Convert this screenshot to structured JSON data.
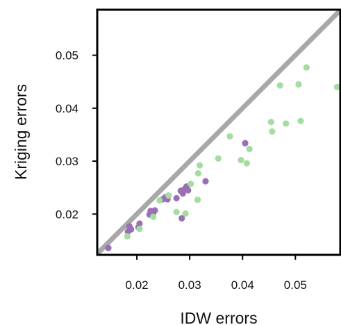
{
  "chart_data": {
    "type": "scatter",
    "title": "",
    "xlabel": "IDW errors",
    "ylabel": "Kriging errors",
    "xlim": [
      0.0125,
      0.0585
    ],
    "ylim": [
      0.0123,
      0.0586
    ],
    "x_ticks": [
      0.02,
      0.03,
      0.04,
      0.05
    ],
    "y_ticks": [
      0.02,
      0.03,
      0.04,
      0.05
    ],
    "x_tick_labels": [
      "0.02",
      "0.03",
      "0.04",
      "0.05"
    ],
    "y_tick_labels": [
      "0.02",
      "0.03",
      "0.04",
      "0.05"
    ],
    "grid": false,
    "legend": "none",
    "reference_line": {
      "type": "identity",
      "label": "",
      "color": "#a8a8a8"
    },
    "series": [
      {
        "color": "#9b6fb6",
        "points": [
          [
            0.0146,
            0.0136
          ],
          [
            0.0183,
            0.0167
          ],
          [
            0.0186,
            0.0177
          ],
          [
            0.0189,
            0.0171
          ],
          [
            0.0203,
            0.0175
          ],
          [
            0.0205,
            0.0182
          ],
          [
            0.0224,
            0.0199
          ],
          [
            0.0226,
            0.0206
          ],
          [
            0.0231,
            0.0202
          ],
          [
            0.0234,
            0.0207
          ],
          [
            0.0249,
            0.0228
          ],
          [
            0.0254,
            0.0232
          ],
          [
            0.0258,
            0.0228
          ],
          [
            0.026,
            0.0235
          ],
          [
            0.0275,
            0.023
          ],
          [
            0.0283,
            0.0244
          ],
          [
            0.0285,
            0.0192
          ],
          [
            0.0287,
            0.0239
          ],
          [
            0.029,
            0.0247
          ],
          [
            0.0294,
            0.0252
          ],
          [
            0.0297,
            0.0245
          ],
          [
            0.033,
            0.0262
          ],
          [
            0.0405,
            0.0334
          ]
        ]
      },
      {
        "color": "#a4dca2",
        "points": [
          [
            0.0182,
            0.0158
          ],
          [
            0.0205,
            0.0172
          ],
          [
            0.0231,
            0.0195
          ],
          [
            0.0243,
            0.0226
          ],
          [
            0.026,
            0.0235
          ],
          [
            0.0275,
            0.0204
          ],
          [
            0.0292,
            0.0201
          ],
          [
            0.0302,
            0.0257
          ],
          [
            0.0315,
            0.0227
          ],
          [
            0.0316,
            0.0277
          ],
          [
            0.0319,
            0.0292
          ],
          [
            0.0354,
            0.0305
          ],
          [
            0.0376,
            0.0347
          ],
          [
            0.0397,
            0.0302
          ],
          [
            0.0408,
            0.0296
          ],
          [
            0.0413,
            0.0323
          ],
          [
            0.0454,
            0.0374
          ],
          [
            0.0456,
            0.0356
          ],
          [
            0.0471,
            0.0443
          ],
          [
            0.0482,
            0.0371
          ],
          [
            0.0506,
            0.0445
          ],
          [
            0.051,
            0.0376
          ],
          [
            0.0521,
            0.0477
          ],
          [
            0.0579,
            0.044
          ]
        ]
      }
    ]
  }
}
